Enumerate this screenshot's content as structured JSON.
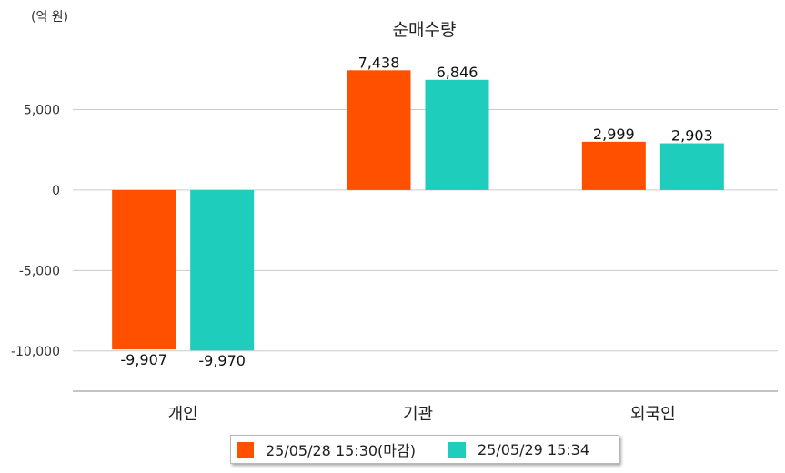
{
  "chart_data": {
    "type": "bar",
    "title": "순매수량",
    "unit_label": "(억 원)",
    "categories": [
      "개인",
      "기관",
      "외국인"
    ],
    "series": [
      {
        "name": "25/05/28 15:30(마감)",
        "color": "#ff5000",
        "values": [
          -9907,
          7438,
          2999
        ],
        "labels": [
          "-9,907",
          "7,438",
          "2,999"
        ]
      },
      {
        "name": "25/05/29 15:34",
        "color": "#1ecdbb",
        "values": [
          -9970,
          6846,
          2903
        ],
        "labels": [
          "-9,970",
          "6,846",
          "2,903"
        ]
      }
    ],
    "ylim": [
      -12500,
      8700
    ],
    "yticks": [
      5000,
      0,
      -5000,
      -10000
    ],
    "ytick_labels": [
      "5,000",
      "0",
      "-5,000",
      "-10,000"
    ],
    "grid": true,
    "legend_position": "bottom"
  }
}
